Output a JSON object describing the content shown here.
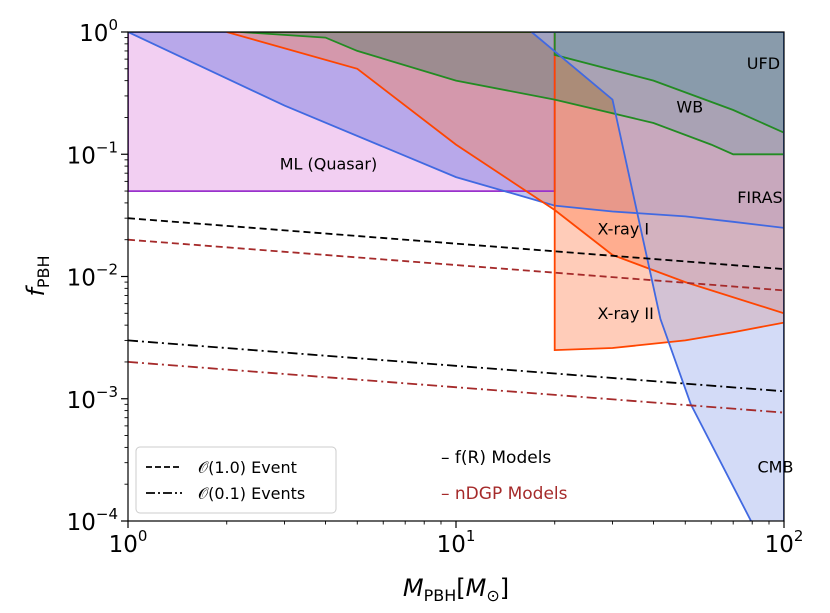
{
  "chart_data": {
    "type": "area",
    "title": "",
    "xlabel": {
      "main": "M",
      "sub": "PBH",
      "bracket_open": "[",
      "unit_main": "M",
      "unit_sub": "⊙",
      "bracket_close": "]"
    },
    "ylabel": {
      "main": "f",
      "sub": "PBH"
    },
    "xscale": "log",
    "yscale": "log",
    "xlim": [
      1,
      100
    ],
    "ylim": [
      0.0001,
      1
    ],
    "x_ticks": [
      {
        "value": 1,
        "base": "10",
        "exp": "0"
      },
      {
        "value": 10,
        "base": "10",
        "exp": "1"
      },
      {
        "value": 100,
        "base": "10",
        "exp": "2"
      }
    ],
    "y_ticks": [
      {
        "value": 0.0001,
        "base": "10",
        "exp": "−4"
      },
      {
        "value": 0.001,
        "base": "10",
        "exp": "−3"
      },
      {
        "value": 0.01,
        "base": "10",
        "exp": "−2"
      },
      {
        "value": 0.1,
        "base": "10",
        "exp": "−1"
      },
      {
        "value": 1,
        "base": "10",
        "exp": "0"
      }
    ],
    "regions": [
      {
        "name": "ML (Quasar)",
        "fill": "#e8a8e8",
        "opacity": 0.55,
        "stroke": "#9932cc",
        "points": [
          [
            1,
            1
          ],
          [
            20,
            1
          ],
          [
            20,
            0.05
          ],
          [
            1,
            0.05
          ]
        ],
        "label": "ML (Quasar)",
        "label_at": [
          2.9,
          0.075
        ]
      },
      {
        "name": "FIRAS",
        "fill": "#6a72e0",
        "opacity": 0.42,
        "stroke": "#4169e1",
        "points": [
          [
            1,
            1
          ],
          [
            100,
            1
          ],
          [
            100,
            0.025
          ],
          [
            70,
            0.028
          ],
          [
            50,
            0.031
          ],
          [
            30,
            0.034
          ],
          [
            20,
            0.038
          ],
          [
            10,
            0.065
          ],
          [
            3,
            0.25
          ],
          [
            1,
            1
          ]
        ],
        "label": "FIRAS",
        "label_at": [
          72,
          0.04
        ]
      },
      {
        "name": "X-ray I",
        "fill": "#ff7f50",
        "opacity": 0.4,
        "stroke": "#ff4500",
        "points": [
          [
            2,
            1
          ],
          [
            5,
            0.5
          ],
          [
            10,
            0.12
          ],
          [
            20,
            0.035
          ],
          [
            30,
            0.015
          ],
          [
            50,
            0.009
          ],
          [
            100,
            0.005
          ],
          [
            100,
            1
          ]
        ],
        "label": "X-ray I",
        "label_at": [
          27,
          0.022
        ]
      },
      {
        "name": "X-ray II",
        "fill": "#ff7f50",
        "opacity": 0.4,
        "stroke": "#ff4500",
        "points": [
          [
            20,
            1
          ],
          [
            20,
            0.0025
          ],
          [
            30,
            0.0026
          ],
          [
            50,
            0.003
          ],
          [
            70,
            0.0035
          ],
          [
            100,
            0.0042
          ],
          [
            100,
            1
          ]
        ],
        "label": "X-ray II",
        "label_at": [
          27,
          0.0045
        ]
      },
      {
        "name": "UFD",
        "fill": "#1f6f4f",
        "opacity": 0.45,
        "stroke": "#228b22",
        "points": [
          [
            20,
            1
          ],
          [
            100,
            1
          ],
          [
            100,
            0.15
          ],
          [
            70,
            0.23
          ],
          [
            40,
            0.4
          ],
          [
            20,
            0.65
          ]
        ],
        "label": "UFD",
        "label_at": [
          77,
          0.5
        ]
      },
      {
        "name": "WB",
        "fill": "#1f6f4f",
        "opacity": 0.3,
        "stroke": "#228b22",
        "points": [
          [
            2.2,
            1
          ],
          [
            4,
            0.9
          ],
          [
            5,
            0.7
          ],
          [
            10,
            0.4
          ],
          [
            20,
            0.28
          ],
          [
            40,
            0.18
          ],
          [
            60,
            0.12
          ],
          [
            70,
            0.1
          ],
          [
            100,
            0.1
          ],
          [
            100,
            1
          ]
        ],
        "label": "WB",
        "label_at": [
          47,
          0.22
        ]
      },
      {
        "name": "CMB",
        "fill": "#a8b8f0",
        "opacity": 0.5,
        "stroke": "#4169e1",
        "points": [
          [
            17,
            1
          ],
          [
            30,
            0.28
          ],
          [
            42,
            0.0045
          ],
          [
            52,
            0.0009
          ],
          [
            100,
            3e-05
          ],
          [
            100,
            1
          ]
        ],
        "label": "CMB",
        "label_at": [
          83,
          0.00025
        ]
      }
    ],
    "series": [
      {
        "name": "f(R) O(1.0) Event",
        "color": "#000000",
        "style": "dashed",
        "x": [
          1,
          100
        ],
        "y": [
          0.03,
          0.0115
        ]
      },
      {
        "name": "nDGP O(1.0) Event",
        "color": "#a52a2a",
        "style": "dashed",
        "x": [
          1,
          100
        ],
        "y": [
          0.02,
          0.0077
        ]
      },
      {
        "name": "f(R) O(0.1) Events",
        "color": "#000000",
        "style": "dashdot",
        "x": [
          1,
          100
        ],
        "y": [
          0.003,
          0.00115
        ]
      },
      {
        "name": "nDGP O(0.1) Events",
        "color": "#a52a2a",
        "style": "dashdot",
        "x": [
          1,
          100
        ],
        "y": [
          0.002,
          0.00077
        ]
      }
    ],
    "legend": {
      "placement": "lower-left",
      "entries": [
        {
          "style": "dashed",
          "label_main": "𝒪(1.0) Event"
        },
        {
          "style": "dashdot",
          "label_main": "𝒪(0.1) Events"
        }
      ]
    },
    "model_annotations": [
      {
        "dash": "–",
        "text": "f(R) Models",
        "color": "#000000"
      },
      {
        "dash": "–",
        "text": "nDGP Models",
        "color": "#a52a2a"
      }
    ]
  }
}
